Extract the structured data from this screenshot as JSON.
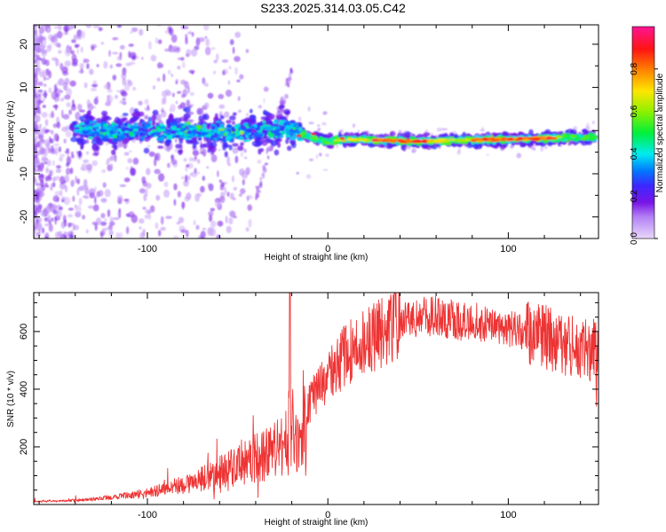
{
  "chart_data": [
    {
      "id": "spectrogram",
      "type": "heatmap",
      "title": "S233.2025.314.03.05.C42",
      "xlabel": "Height of straight line (km)",
      "ylabel": "Frequency (Hz)",
      "xlim": [
        -163,
        150
      ],
      "ylim": [
        -25,
        24.5
      ],
      "x_ticks": [
        -100,
        0,
        100
      ],
      "y_ticks": [
        20,
        10,
        0,
        -10,
        -20
      ],
      "colorbar": {
        "label": "Normalized spectral amplitude",
        "range": [
          0,
          1
        ],
        "ticks": [
          "0.0",
          "0.2",
          "0.4",
          "0.6",
          "0.8"
        ],
        "tick_values": [
          0.0,
          0.2,
          0.4,
          0.6,
          0.8
        ]
      },
      "ridge": {
        "description_points": [
          {
            "x": -140,
            "f": 0.0
          },
          {
            "x": -60,
            "f": -0.5
          },
          {
            "x": -20,
            "f": 0.5
          },
          {
            "x": -10,
            "f": -1.5
          },
          {
            "x": 0,
            "f": -2.5
          },
          {
            "x": 10,
            "f": -2.0
          },
          {
            "x": 50,
            "f": -2.5
          },
          {
            "x": 100,
            "f": -2.0
          },
          {
            "x": 148,
            "f": -1.5
          }
        ]
      }
    },
    {
      "id": "snr",
      "type": "line",
      "xlabel": "Height of straight line (km)",
      "ylabel": "SNR (10 * v/v)",
      "xlim": [
        -163,
        150
      ],
      "ylim": [
        0,
        735
      ],
      "x_ticks": [
        -100,
        0,
        100
      ],
      "y_ticks": [
        200,
        400,
        600
      ],
      "color": "#ee3333",
      "envelope": {
        "x": [
          -163,
          -140,
          -120,
          -100,
          -80,
          -60,
          -40,
          -25,
          -20,
          -15,
          -10,
          0,
          10,
          20,
          30,
          40,
          50,
          60,
          70,
          80,
          90,
          100,
          110,
          120,
          130,
          140,
          150
        ],
        "base": [
          10,
          14,
          25,
          40,
          70,
          110,
          160,
          210,
          280,
          170,
          360,
          440,
          520,
          560,
          600,
          630,
          650,
          655,
          640,
          635,
          630,
          610,
          590,
          580,
          560,
          540,
          540
        ],
        "spike": {
          "x": -21,
          "value": 735
        }
      }
    }
  ]
}
